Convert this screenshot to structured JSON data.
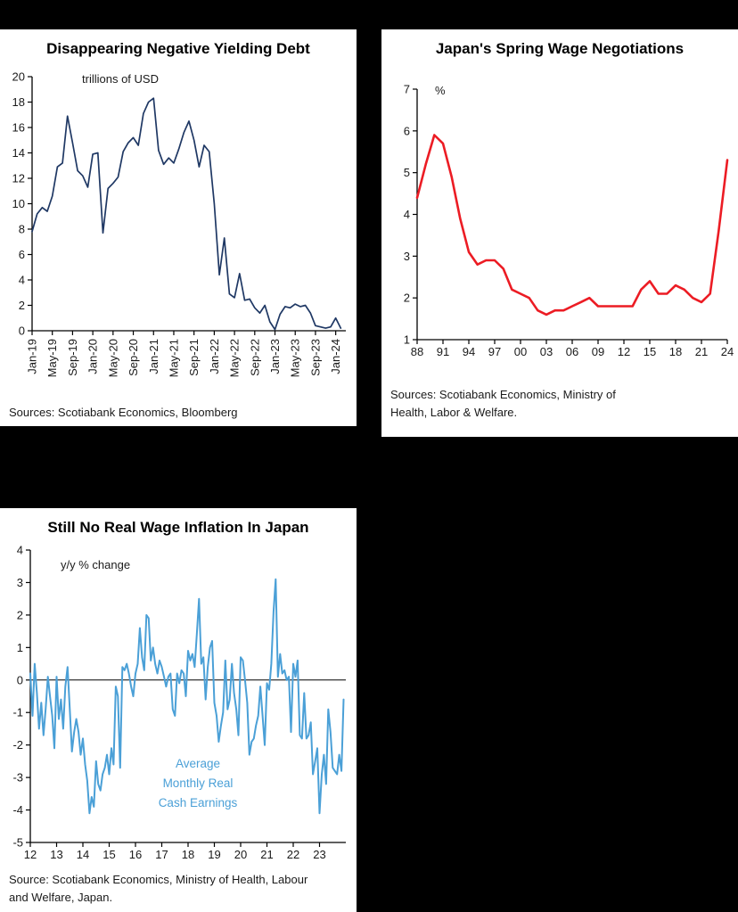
{
  "page": {
    "background_color": "#000000"
  },
  "chart_data": [
    {
      "type": "line",
      "title": "Disappearing Negative Yielding Debt",
      "unit_label": "trillions of USD",
      "source": "Sources: Scotiabank Economics, Bloomberg",
      "color": "#1f3864",
      "ylabel": "trillions of USD",
      "y_min": 0,
      "y_max": 20,
      "y_tick_step": 2,
      "x_tick_labels": [
        "Jan-19",
        "May-19",
        "Sep-19",
        "Jan-20",
        "May-20",
        "Sep-20",
        "Jan-21",
        "May-21",
        "Sep-21",
        "Jan-22",
        "May-22",
        "Sep-22",
        "Jan-23",
        "May-23",
        "Sep-23",
        "Jan-24"
      ],
      "x_tick_positions": [
        0,
        4,
        8,
        12,
        16,
        20,
        24,
        28,
        32,
        36,
        40,
        44,
        48,
        52,
        56,
        60
      ],
      "x_frequency": "monthly",
      "values": [
        7.8,
        9.2,
        9.7,
        9.4,
        10.6,
        12.9,
        13.2,
        16.9,
        14.8,
        12.6,
        12.2,
        11.3,
        13.9,
        14.0,
        7.7,
        11.2,
        11.6,
        12.1,
        14.1,
        14.8,
        15.2,
        14.6,
        17.1,
        18.0,
        18.3,
        14.2,
        13.1,
        13.6,
        13.2,
        14.3,
        15.6,
        16.5,
        15.0,
        12.9,
        14.6,
        14.1,
        10.0,
        4.4,
        7.3,
        2.9,
        2.6,
        4.5,
        2.4,
        2.5,
        1.8,
        1.4,
        2.0,
        0.7,
        0.1,
        1.3,
        1.9,
        1.8,
        2.1,
        1.9,
        2.0,
        1.4,
        0.4,
        0.3,
        0.2,
        0.3,
        1.0,
        0.2
      ]
    },
    {
      "type": "line",
      "title": "Japan's Spring Wage Negotiations",
      "unit_label": "%",
      "source": "Sources: Scotiabank Economics, Ministry of Health, Labor & Welfare.",
      "color": "#ec1c24",
      "ylabel": "%",
      "y_min": 1,
      "y_max": 7,
      "y_tick_step": 1,
      "x_tick_labels": [
        "88",
        "91",
        "94",
        "97",
        "00",
        "03",
        "06",
        "09",
        "12",
        "15",
        "18",
        "21",
        "24"
      ],
      "x_tick_positions": [
        0,
        3,
        6,
        9,
        12,
        15,
        18,
        21,
        24,
        27,
        30,
        33,
        36
      ],
      "x_frequency": "annual",
      "x_start_year": 1988,
      "values": [
        4.4,
        5.2,
        5.9,
        5.7,
        4.9,
        3.9,
        3.1,
        2.8,
        2.9,
        2.9,
        2.7,
        2.2,
        2.1,
        2.0,
        1.7,
        1.6,
        1.7,
        1.7,
        1.8,
        1.9,
        2.0,
        1.8,
        1.8,
        1.8,
        1.8,
        1.8,
        2.2,
        2.4,
        2.1,
        2.1,
        2.3,
        2.2,
        2.0,
        1.9,
        2.1,
        3.6,
        5.3
      ]
    },
    {
      "type": "line",
      "title": "Still No Real Wage Inflation In Japan",
      "unit_label": "y/y % change",
      "source": "Source: Scotiabank Economics, Ministry of Health, Labour and Welfare, Japan.",
      "color": "#4ba0d7",
      "ylabel": "y/y % change",
      "y_min": -5,
      "y_max": 4,
      "y_tick_step": 1,
      "x_tick_labels": [
        "12",
        "13",
        "14",
        "15",
        "16",
        "17",
        "18",
        "19",
        "20",
        "21",
        "22",
        "23"
      ],
      "x_tick_positions": [
        0,
        12,
        24,
        36,
        48,
        60,
        72,
        84,
        96,
        108,
        120,
        132
      ],
      "x_frequency": "monthly",
      "zero_line": true,
      "annotation_lines": [
        "Average",
        "Monthly Real",
        "Cash Earnings"
      ],
      "values": [
        0.2,
        -1.1,
        0.5,
        -0.4,
        -1.5,
        -0.7,
        -1.7,
        -0.9,
        0.1,
        -0.5,
        -1.1,
        -2.1,
        0.1,
        -1.2,
        -0.6,
        -1.5,
        -0.2,
        0.4,
        -0.9,
        -2.2,
        -1.6,
        -1.2,
        -1.6,
        -2.3,
        -1.8,
        -2.6,
        -3.1,
        -4.1,
        -3.6,
        -3.9,
        -2.5,
        -3.2,
        -3.4,
        -2.9,
        -2.7,
        -2.3,
        -2.9,
        -2.1,
        -2.6,
        -0.2,
        -0.5,
        -2.7,
        0.4,
        0.3,
        0.5,
        0.2,
        -0.2,
        -0.5,
        0.2,
        0.5,
        1.6,
        0.7,
        0.3,
        2.0,
        1.9,
        0.6,
        1.0,
        0.5,
        0.2,
        0.6,
        0.4,
        0.1,
        -0.2,
        0.1,
        0.2,
        -0.9,
        -1.1,
        0.2,
        -0.1,
        0.3,
        0.2,
        -0.5,
        0.9,
        0.6,
        0.8,
        0.4,
        1.4,
        2.5,
        0.5,
        0.7,
        -0.6,
        0.4,
        1.0,
        1.2,
        -0.7,
        -1.1,
        -1.9,
        -1.4,
        -1.0,
        0.6,
        -0.9,
        -0.6,
        0.5,
        -0.4,
        -0.9,
        -1.7,
        0.7,
        0.6,
        0.0,
        -0.7,
        -2.3,
        -1.9,
        -1.8,
        -1.4,
        -1.1,
        -0.2,
        -1.1,
        -2.0,
        -0.1,
        -0.3,
        0.5,
        2.1,
        3.1,
        0.1,
        0.8,
        0.2,
        0.3,
        0.0,
        0.1,
        -1.6,
        0.5,
        0.1,
        0.6,
        -1.7,
        -1.8,
        -0.4,
        -1.8,
        -1.7,
        -1.3,
        -2.9,
        -2.5,
        -2.1,
        -4.1,
        -2.9,
        -2.3,
        -3.2,
        -0.9,
        -1.6,
        -2.7,
        -2.8,
        -2.9,
        -2.3,
        -2.8,
        -0.6
      ]
    }
  ]
}
